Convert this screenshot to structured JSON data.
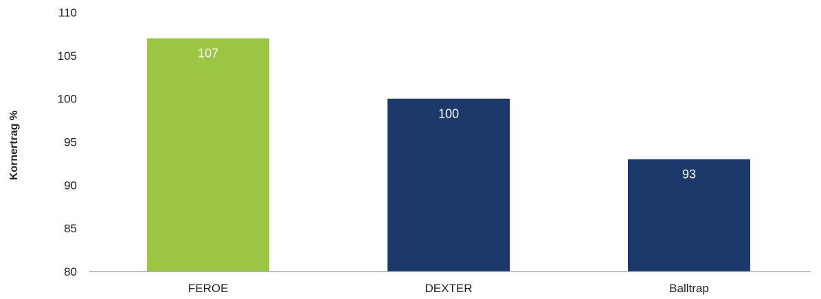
{
  "chart_data": {
    "type": "bar",
    "categories": [
      "FEROE",
      "DEXTER",
      "Balltrap"
    ],
    "values": [
      107,
      100,
      93
    ],
    "data_labels": [
      "107",
      "100",
      "93"
    ],
    "bar_colors": [
      "#9dc544",
      "#1b3a6b",
      "#1b3a6b"
    ],
    "ylabel": "Kornertrag %",
    "ylim": [
      80,
      110
    ],
    "yticks": [
      80,
      85,
      90,
      95,
      100,
      105,
      110
    ],
    "ytick_labels": [
      "80",
      "85",
      "90",
      "95",
      "100",
      "105",
      "110"
    ],
    "grid": false,
    "legend": "none"
  }
}
